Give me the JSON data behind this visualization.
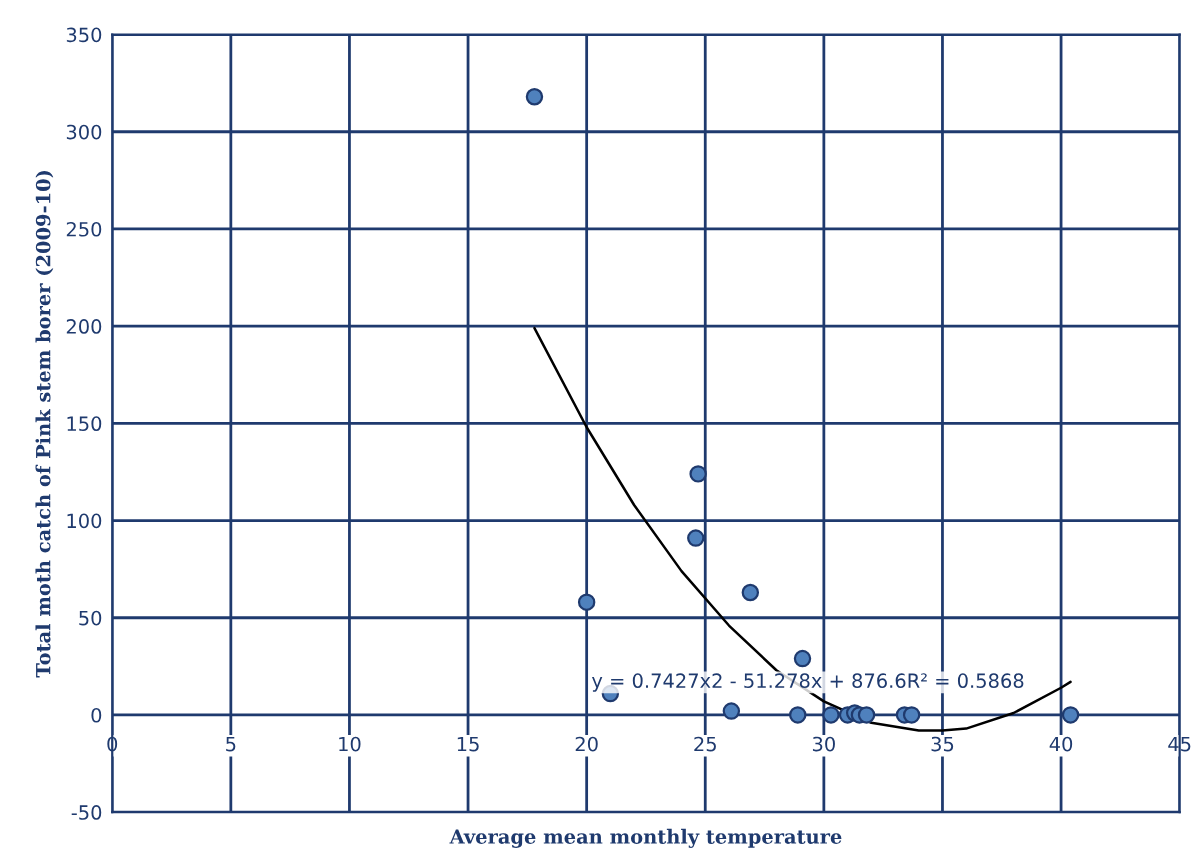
{
  "chart_data": {
    "type": "scatter",
    "xlabel": "Average mean monthly temperature",
    "ylabel": "Total moth catch of Pink stem borer (2009-10)",
    "xlim": [
      0,
      45
    ],
    "ylim": [
      -50,
      350
    ],
    "xticks": [
      0,
      5,
      10,
      15,
      20,
      25,
      30,
      35,
      40,
      45
    ],
    "yticks": [
      -50,
      0,
      50,
      100,
      150,
      200,
      250,
      300,
      350
    ],
    "grid": true,
    "annotations": [
      "y = 0.7427x2 - 51.278x + 876.6R² = 0.5868"
    ],
    "series": [
      {
        "marker": "circle",
        "color": "#4f81bd",
        "x": [
          17.8,
          20.0,
          21.0,
          24.7,
          24.6,
          26.9,
          26.1,
          29.1,
          28.9,
          30.3,
          31.0,
          31.3,
          31.5,
          31.8,
          33.4,
          33.7,
          40.4
        ],
        "values": [
          318,
          58,
          11,
          124,
          91,
          63,
          2,
          29,
          0,
          0,
          0,
          1,
          0,
          0,
          0,
          0,
          0
        ]
      },
      {
        "type": "line",
        "color": "#000000",
        "x": [
          17.8,
          20,
          22,
          24,
          26,
          28,
          30,
          32,
          34,
          35,
          36,
          38,
          40,
          40.4
        ],
        "values": [
          199,
          148,
          108,
          74,
          46,
          23,
          7,
          -4,
          -8,
          -8,
          -7,
          1,
          14,
          17
        ]
      }
    ]
  }
}
